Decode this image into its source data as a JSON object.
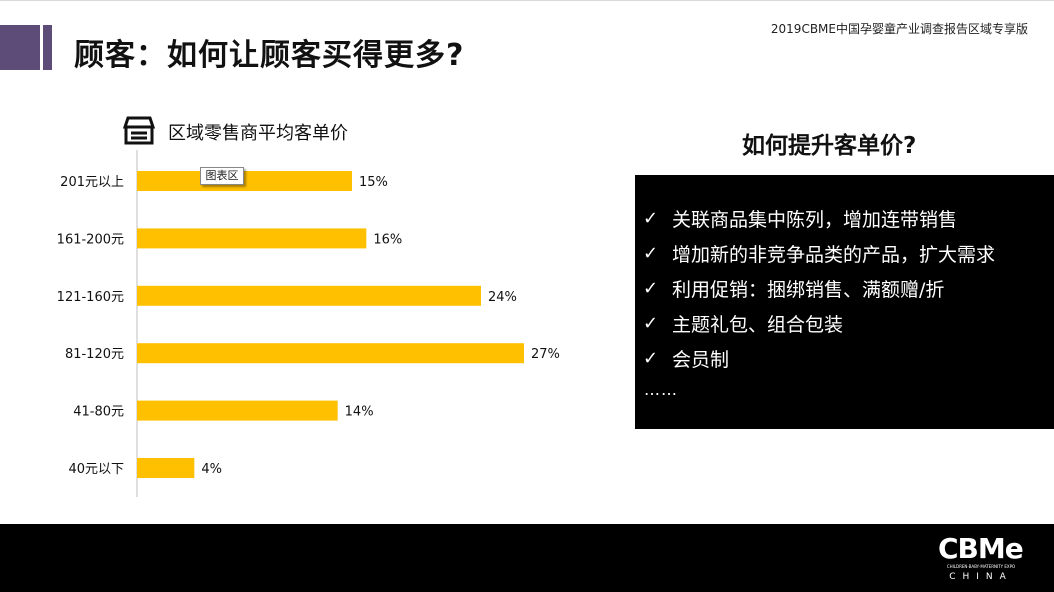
{
  "header": {
    "title": "顾客：如何让顾客买得更多?",
    "report_name": "2019CBME中国孕婴童产业调查报告区域专享版"
  },
  "tooltip": "图表区",
  "chart_data": {
    "type": "bar",
    "orientation": "horizontal",
    "title": "区域零售商平均客单价",
    "categories": [
      "201元以上",
      "161-200元",
      "121-160元",
      "81-120元",
      "41-80元",
      "40元以下"
    ],
    "values": [
      15,
      16,
      24,
      27,
      14,
      4
    ],
    "value_labels": [
      "15%",
      "16%",
      "24%",
      "27%",
      "14%",
      "4%"
    ],
    "unit": "%",
    "xlim": [
      0,
      30
    ],
    "grid": false,
    "legend": "none",
    "color": "#ffc000"
  },
  "tips": {
    "heading": "如何提升客单价?",
    "items": [
      "关联商品集中陈列，增加连带销售",
      "增加新的非竞争品类的产品，扩大需求",
      "利用促销：捆绑销售、满额赠/折",
      "主题礼包、组合包装",
      "会员制"
    ],
    "check": "✓",
    "ellipsis": "……"
  },
  "footer": {
    "logo": "CBMe",
    "logo_sub": "CHILDREN·BABY·MATERNITY EXPO",
    "logo_region": "CHINA"
  },
  "colors": {
    "accent": "#5d4b78",
    "bar": "#ffc000",
    "panel": "#000000"
  }
}
